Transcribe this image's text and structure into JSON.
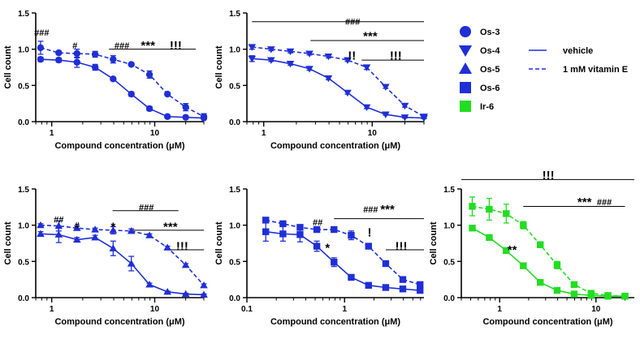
{
  "colors": {
    "blue": "#1f2fd6",
    "green": "#22dd22",
    "axis": "#000000"
  },
  "legend": {
    "markers": [
      {
        "label": "Os-3",
        "shape": "circle",
        "color": "#1f2fd6"
      },
      {
        "label": "Os-4",
        "shape": "triangle-down",
        "color": "#1f2fd6"
      },
      {
        "label": "Os-5",
        "shape": "triangle-up",
        "color": "#1f2fd6"
      },
      {
        "label": "Os-6",
        "shape": "square",
        "color": "#1f2fd6"
      },
      {
        "label": "Ir-6",
        "shape": "square",
        "color": "#22dd22"
      }
    ],
    "lines": [
      {
        "label": "vehicle",
        "style": "solid"
      },
      {
        "label": "1 mM vitamin E",
        "style": "dashed"
      }
    ]
  },
  "chart_data": [
    {
      "id": "os3",
      "type": "line",
      "marker": "circle",
      "color": "#1f2fd6",
      "xlabel": "Compound concentration (μM)",
      "ylabel": "Cell count",
      "xscale": "log",
      "xlim": [
        0.7,
        30
      ],
      "ylim": [
        0,
        1.5
      ],
      "xticks": [
        {
          "v": 1,
          "l": "1"
        },
        {
          "v": 10,
          "l": "10"
        }
      ],
      "yticks": [
        "0.0",
        "0.5",
        "1.0",
        "1.5"
      ],
      "series": [
        {
          "name": "vehicle",
          "style": "solid",
          "x": [
            0.78,
            1.17,
            1.76,
            2.64,
            3.95,
            5.93,
            8.9,
            13.3,
            20,
            30
          ],
          "y": [
            0.86,
            0.85,
            0.82,
            0.75,
            0.59,
            0.38,
            0.18,
            0.07,
            0.06,
            0.05
          ],
          "err": [
            0.03,
            0.03,
            0.07,
            0.04,
            0.02,
            0.03,
            0.03,
            0.01,
            0.01,
            0.01
          ]
        },
        {
          "name": "1 mM vitamin E",
          "style": "dashed",
          "x": [
            0.78,
            1.17,
            1.76,
            2.64,
            3.95,
            5.93,
            8.9,
            13.3,
            20,
            30
          ],
          "y": [
            1.02,
            0.95,
            0.94,
            0.93,
            0.86,
            0.79,
            0.65,
            0.38,
            0.2,
            0.07
          ],
          "err": [
            0.09,
            0.02,
            0.06,
            0.04,
            0.05,
            0.02,
            0.05,
            0.02,
            0.05,
            0.04
          ]
        }
      ],
      "annotations": [
        {
          "text": "###",
          "x": 0.8,
          "y": 1.23
        },
        {
          "text": "#",
          "x": 1.68,
          "y": 1.05
        },
        {
          "text": "###",
          "x": 4.8,
          "y": 1.05
        },
        {
          "text": "***",
          "x": 8.6,
          "y": 1.05
        },
        {
          "text": "!!!",
          "x": 16,
          "y": 1.05
        }
      ],
      "brackets": [
        {
          "x1": 3.6,
          "x2": 25,
          "y": 1.0
        }
      ]
    },
    {
      "id": "os4",
      "type": "line",
      "marker": "triangle-down",
      "color": "#1f2fd6",
      "xlabel": "Compound concentration (μM)",
      "ylabel": "Cell count",
      "xscale": "log",
      "xlim": [
        0.7,
        30
      ],
      "ylim": [
        0,
        1.5
      ],
      "xticks": [
        {
          "v": 1,
          "l": "1"
        },
        {
          "v": 10,
          "l": "10"
        }
      ],
      "yticks": [
        "0.0",
        "0.5",
        "1.0",
        "1.5"
      ],
      "series": [
        {
          "name": "vehicle",
          "style": "solid",
          "x": [
            0.78,
            1.17,
            1.76,
            2.64,
            3.95,
            5.93,
            8.9,
            13.3,
            20,
            30
          ],
          "y": [
            0.87,
            0.85,
            0.8,
            0.73,
            0.6,
            0.4,
            0.2,
            0.1,
            0.06,
            0.05
          ],
          "err": [
            0.04,
            0.02,
            0.02,
            0.02,
            0.02,
            0.02,
            0.02,
            0.01,
            0.01,
            0.01
          ]
        },
        {
          "name": "1 mM vitamin E",
          "style": "dashed",
          "x": [
            0.78,
            1.17,
            1.76,
            2.64,
            3.95,
            5.93,
            8.9,
            13.3,
            20,
            30
          ],
          "y": [
            1.03,
            1.0,
            0.97,
            0.94,
            0.9,
            0.85,
            0.75,
            0.48,
            0.22,
            0.07
          ],
          "err": [
            0.03,
            0.02,
            0.02,
            0.02,
            0.02,
            0.02,
            0.03,
            0.02,
            0.02,
            0.02
          ]
        }
      ],
      "annotations": [
        {
          "text": "###",
          "x": 6.6,
          "y": 1.38
        },
        {
          "text": "***",
          "x": 9.6,
          "y": 1.18
        },
        {
          "text": "!!",
          "x": 6.5,
          "y": 0.91
        },
        {
          "text": "!!!",
          "x": 16.5,
          "y": 0.91
        }
      ],
      "brackets": [
        {
          "x1": 0.78,
          "x2": 30,
          "y": 1.38
        },
        {
          "x1": 2.7,
          "x2": 30,
          "y": 1.12
        },
        {
          "x1": 8.0,
          "x2": 30,
          "y": 0.85
        }
      ]
    },
    {
      "id": "os5",
      "type": "line",
      "marker": "triangle-up",
      "color": "#1f2fd6",
      "xlabel": "Compound concentration (μM)",
      "ylabel": "Cell count",
      "xscale": "log",
      "xlim": [
        0.7,
        30
      ],
      "ylim": [
        0,
        1.5
      ],
      "xticks": [
        {
          "v": 1,
          "l": "1"
        },
        {
          "v": 10,
          "l": "10"
        }
      ],
      "yticks": [
        "0.0",
        "0.5",
        "1.0",
        "1.5"
      ],
      "series": [
        {
          "name": "vehicle",
          "style": "solid",
          "x": [
            0.78,
            1.17,
            1.76,
            2.64,
            3.95,
            5.93,
            8.9,
            13.3,
            20,
            30
          ],
          "y": [
            0.88,
            0.87,
            0.8,
            0.83,
            0.68,
            0.47,
            0.18,
            0.08,
            0.05,
            0.04
          ],
          "err": [
            0.03,
            0.11,
            0.03,
            0.03,
            0.1,
            0.1,
            0.02,
            0.01,
            0.01,
            0.01
          ]
        },
        {
          "name": "1 mM vitamin E",
          "style": "dashed",
          "x": [
            0.78,
            1.17,
            1.76,
            2.64,
            3.95,
            5.93,
            8.9,
            13.3,
            20,
            30
          ],
          "y": [
            1.0,
            0.99,
            0.96,
            0.94,
            0.93,
            0.92,
            0.86,
            0.69,
            0.45,
            0.17
          ],
          "err": [
            0.02,
            0.07,
            0.03,
            0.02,
            0.05,
            0.03,
            0.02,
            0.02,
            0.02,
            0.02
          ]
        }
      ],
      "annotations": [
        {
          "text": "##",
          "x": 1.17,
          "y": 1.08
        },
        {
          "text": "#",
          "x": 1.76,
          "y": 1.0
        },
        {
          "text": "*",
          "x": 3.95,
          "y": 0.98
        },
        {
          "text": "###",
          "x": 8.3,
          "y": 1.25
        },
        {
          "text": "***",
          "x": 14.2,
          "y": 0.98
        },
        {
          "text": "!!!",
          "x": 18.5,
          "y": 0.71
        }
      ],
      "brackets": [
        {
          "x1": 3.9,
          "x2": 17,
          "y": 1.2
        },
        {
          "x1": 6.0,
          "x2": 30,
          "y": 0.93
        },
        {
          "x1": 12.5,
          "x2": 30,
          "y": 0.66
        }
      ]
    },
    {
      "id": "os6",
      "type": "line",
      "marker": "square",
      "color": "#1f2fd6",
      "xlabel": "Compound concentration (μM)",
      "ylabel": "Cell count",
      "xscale": "log",
      "xlim": [
        0.1,
        6.5
      ],
      "ylim": [
        0,
        1.5
      ],
      "xticks": [
        {
          "v": 0.1,
          "l": "0.1"
        },
        {
          "v": 1,
          "l": "1"
        }
      ],
      "yticks": [
        "0.0",
        "0.5",
        "1.0",
        "1.5"
      ],
      "series": [
        {
          "name": "vehicle",
          "style": "solid",
          "x": [
            0.156,
            0.234,
            0.35,
            0.52,
            0.78,
            1.17,
            1.76,
            2.64,
            3.95,
            5.93
          ],
          "y": [
            0.91,
            0.88,
            0.87,
            0.71,
            0.49,
            0.28,
            0.17,
            0.14,
            0.12,
            0.1
          ],
          "err": [
            0.13,
            0.1,
            0.1,
            0.07,
            0.06,
            0.02,
            0.02,
            0.02,
            0.02,
            0.02
          ]
        },
        {
          "name": "1 mM vitamin E",
          "style": "dashed",
          "x": [
            0.156,
            0.234,
            0.35,
            0.52,
            0.78,
            1.17,
            1.76,
            2.64,
            3.95,
            5.93
          ],
          "y": [
            1.07,
            1.02,
            0.97,
            0.94,
            0.94,
            0.86,
            0.71,
            0.47,
            0.25,
            0.18
          ],
          "err": [
            0.03,
            0.03,
            0.03,
            0.02,
            0.03,
            0.06,
            0.03,
            0.03,
            0.03,
            0.03
          ]
        }
      ],
      "annotations": [
        {
          "text": "##",
          "x": 0.53,
          "y": 1.04
        },
        {
          "text": "*",
          "x": 0.67,
          "y": 0.69
        },
        {
          "text": "###",
          "x": 1.85,
          "y": 1.22
        },
        {
          "text": "***",
          "x": 2.75,
          "y": 1.22
        },
        {
          "text": "!",
          "x": 1.8,
          "y": 0.9
        },
        {
          "text": "!!!",
          "x": 3.8,
          "y": 0.71
        }
      ],
      "brackets": [
        {
          "x1": 0.78,
          "x2": 6.5,
          "y": 1.09
        },
        {
          "x1": 2.64,
          "x2": 6.5,
          "y": 0.66
        }
      ]
    },
    {
      "id": "ir6",
      "type": "line",
      "marker": "square",
      "color": "#22dd22",
      "xlabel": "Compound concentration (μM)",
      "ylabel": "Cell count",
      "xscale": "log",
      "xlim": [
        0.4,
        25
      ],
      "ylim": [
        0,
        1.5
      ],
      "xticks": [
        {
          "v": 1,
          "l": "1"
        },
        {
          "v": 10,
          "l": "10"
        }
      ],
      "yticks": [
        "0.0",
        "0.5",
        "1.0",
        "1.5"
      ],
      "series": [
        {
          "name": "vehicle",
          "style": "solid",
          "x": [
            0.52,
            0.78,
            1.17,
            1.76,
            2.64,
            3.95,
            5.93,
            8.9,
            13.3,
            20
          ],
          "y": [
            0.96,
            0.83,
            0.65,
            0.44,
            0.21,
            0.1,
            0.05,
            0.03,
            0.02,
            0.02
          ],
          "err": [
            0.02,
            0.02,
            0.02,
            0.02,
            0.02,
            0.02,
            0.01,
            0.01,
            0.01,
            0.01
          ]
        },
        {
          "name": "1 mM vitamin E",
          "style": "dashed",
          "x": [
            0.52,
            0.78,
            1.17,
            1.76,
            2.64,
            3.95,
            5.93,
            8.9,
            13.3,
            20
          ],
          "y": [
            1.26,
            1.22,
            1.16,
            1.0,
            0.73,
            0.45,
            0.18,
            0.06,
            0.03,
            0.02
          ],
          "err": [
            0.13,
            0.15,
            0.13,
            0.05,
            0.04,
            0.05,
            0.03,
            0.02,
            0.01,
            0.01
          ]
        }
      ],
      "annotations": [
        {
          "text": "!!!",
          "x": 3.2,
          "y": 1.69
        },
        {
          "text": "***",
          "x": 7.6,
          "y": 1.32
        },
        {
          "text": "###",
          "x": 12.2,
          "y": 1.32
        },
        {
          "text": "**",
          "x": 1.35,
          "y": 0.66
        }
      ],
      "brackets": [
        {
          "x1": 0.4,
          "x2": 25,
          "y": 1.63
        },
        {
          "x1": 1.76,
          "x2": 20,
          "y": 1.26
        }
      ]
    }
  ]
}
